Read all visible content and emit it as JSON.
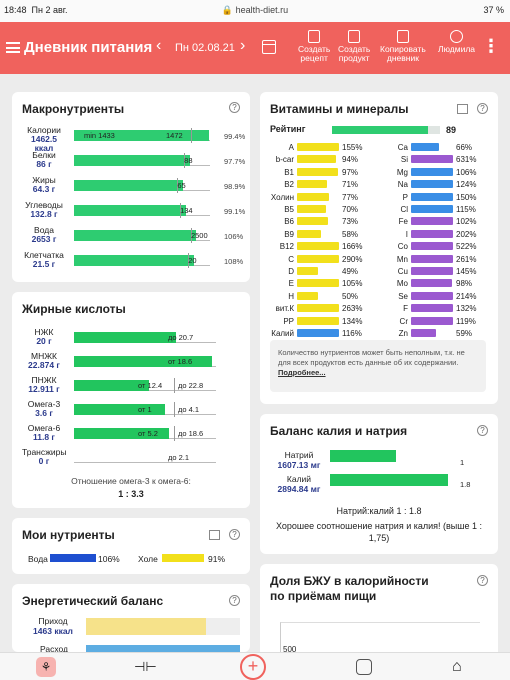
{
  "status": {
    "time": "18:48",
    "date": "Пн 2 авг.",
    "url": "health-diet.ru",
    "battery": "37 %"
  },
  "header": {
    "title": "Дневник питания",
    "date": "Пн 02.08.21",
    "actions": [
      {
        "l1": "Создать",
        "l2": "рецепт"
      },
      {
        "l1": "Создать",
        "l2": "продукт"
      },
      {
        "l1": "Копировать",
        "l2": "дневник"
      },
      {
        "l1": "",
        "l2": "Людмила"
      }
    ]
  },
  "macros": {
    "title": "Макронутриенты",
    "rows": [
      {
        "name": "Калории",
        "val": "1462.5",
        "unit": "ккал",
        "min": "min 1433",
        "max": "1472",
        "pct": "99.4%",
        "fill": 0.99
      },
      {
        "name": "Белки",
        "val": "86 г",
        "mark": "88",
        "pct": "97.7%",
        "fill": 0.85
      },
      {
        "name": "Жиры",
        "val": "64.3 г",
        "mark": "65",
        "pct": "98.9%",
        "fill": 0.8
      },
      {
        "name": "Углеводы",
        "val": "132.8 г",
        "mark": "134",
        "pct": "99.1%",
        "fill": 0.82
      },
      {
        "name": "Вода",
        "val": "2653 г",
        "mark": "2500",
        "pct": "106%",
        "fill": 0.9
      },
      {
        "name": "Клетчатка",
        "val": "21.5 г",
        "mark": "20",
        "pct": "108%",
        "fill": 0.88
      }
    ]
  },
  "fats": {
    "title": "Жирные кислоты",
    "rows": [
      {
        "name": "НЖК",
        "val": "20 г",
        "t1": "до 20.7",
        "fill": 0.72
      },
      {
        "name": "МНЖК",
        "val": "22.874 г",
        "t1": "от 18.6",
        "fill": 0.97
      },
      {
        "name": "ПНЖК",
        "val": "12.911 г",
        "t1": "от 12.4",
        "t2": "до 22.8",
        "fill": 0.53
      },
      {
        "name": "Омега-3",
        "val": "3.6 г",
        "t1": "от 1",
        "t2": "до 4.1",
        "fill": 0.64
      },
      {
        "name": "Омега-6",
        "val": "11.8 г",
        "t1": "от 5.2",
        "t2": "до 18.6",
        "fill": 0.67
      },
      {
        "name": "Трансжиры",
        "val": "0 г",
        "t1": "до 2.1",
        "fill": 0
      }
    ],
    "ratio_label": "Отношение омега-3 к омега-6:",
    "ratio": "1 : 3.3"
  },
  "my": {
    "title": "Мои нутриенты",
    "water": "Вода",
    "water_pct": "106%",
    "hole": "Холе",
    "hole_pct": "91%"
  },
  "energy": {
    "title": "Энергетический баланс",
    "in_label": "Приход",
    "in_val": "1463 ккал",
    "out_label": "Расход"
  },
  "vitamins": {
    "title": "Витамины и минералы",
    "rating_label": "Рейтинг",
    "rating": "89",
    "left": [
      {
        "n": "A",
        "p": "155%",
        "c": "#f2e01b",
        "w": 1
      },
      {
        "n": "b-car",
        "p": "94%",
        "c": "#f2e01b",
        "w": 0.94
      },
      {
        "n": "B1",
        "p": "97%",
        "c": "#f2e01b",
        "w": 0.97
      },
      {
        "n": "B2",
        "p": "71%",
        "c": "#f2e01b",
        "w": 0.71
      },
      {
        "n": "Холин",
        "p": "77%",
        "c": "#f2e01b",
        "w": 0.77
      },
      {
        "n": "B5",
        "p": "70%",
        "c": "#f2e01b",
        "w": 0.7
      },
      {
        "n": "B6",
        "p": "73%",
        "c": "#f2e01b",
        "w": 0.73
      },
      {
        "n": "B9",
        "p": "58%",
        "c": "#f2e01b",
        "w": 0.58
      },
      {
        "n": "B12",
        "p": "166%",
        "c": "#f2e01b",
        "w": 1
      },
      {
        "n": "C",
        "p": "290%",
        "c": "#f2e01b",
        "w": 1
      },
      {
        "n": "D",
        "p": "49%",
        "c": "#f2e01b",
        "w": 0.49
      },
      {
        "n": "E",
        "p": "105%",
        "c": "#f2e01b",
        "w": 1
      },
      {
        "n": "H",
        "p": "50%",
        "c": "#f2e01b",
        "w": 0.5
      },
      {
        "n": "вит.К",
        "p": "263%",
        "c": "#f2e01b",
        "w": 1
      },
      {
        "n": "PP",
        "p": "134%",
        "c": "#f2e01b",
        "w": 1
      },
      {
        "n": "Калий",
        "p": "116%",
        "c": "#3a8ee6",
        "w": 1
      }
    ],
    "right": [
      {
        "n": "Ca",
        "p": "66%",
        "c": "#3a8ee6",
        "w": 0.66
      },
      {
        "n": "Si",
        "p": "631%",
        "c": "#9b59d0",
        "w": 1
      },
      {
        "n": "Mg",
        "p": "106%",
        "c": "#3a8ee6",
        "w": 1
      },
      {
        "n": "Na",
        "p": "124%",
        "c": "#3a8ee6",
        "w": 1
      },
      {
        "n": "P",
        "p": "150%",
        "c": "#3a8ee6",
        "w": 1
      },
      {
        "n": "Cl",
        "p": "115%",
        "c": "#3a8ee6",
        "w": 1
      },
      {
        "n": "Fe",
        "p": "102%",
        "c": "#9b59d0",
        "w": 1
      },
      {
        "n": "I",
        "p": "202%",
        "c": "#9b59d0",
        "w": 1
      },
      {
        "n": "Co",
        "p": "522%",
        "c": "#9b59d0",
        "w": 1
      },
      {
        "n": "Mn",
        "p": "261%",
        "c": "#9b59d0",
        "w": 1
      },
      {
        "n": "Cu",
        "p": "145%",
        "c": "#9b59d0",
        "w": 1
      },
      {
        "n": "Mo",
        "p": "98%",
        "c": "#9b59d0",
        "w": 0.98
      },
      {
        "n": "Se",
        "p": "214%",
        "c": "#9b59d0",
        "w": 1
      },
      {
        "n": "F",
        "p": "132%",
        "c": "#9b59d0",
        "w": 1
      },
      {
        "n": "Cr",
        "p": "119%",
        "c": "#9b59d0",
        "w": 1
      },
      {
        "n": "Zn",
        "p": "59%",
        "c": "#9b59d0",
        "w": 0.59
      }
    ],
    "note": "Количество нутриентов может быть неполным, т.к. не для всех продуктов есть данные об их содержании.",
    "note_link": "Подробнее..."
  },
  "kna": {
    "title": "Баланс калия и натрия",
    "na": "Натрий",
    "na_val": "1607.13 мг",
    "na_r": "1",
    "k": "Калий",
    "k_val": "2894.84 мг",
    "k_r": "1.8",
    "ratio": "Натрий:калий 1 : 1.8",
    "comment": "Хорошее соотношение натрия и калия! (выше 1 : 1,75)"
  },
  "bju": {
    "title": "Доля БЖУ в калорийности по приёмам пищи",
    "y": "500"
  }
}
